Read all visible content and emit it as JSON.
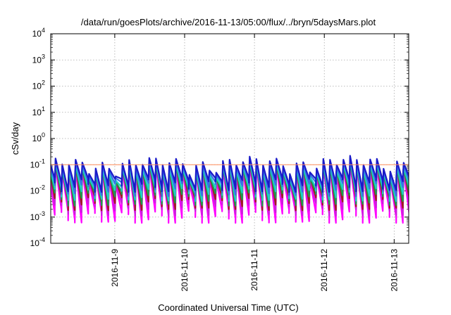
{
  "chart_data": {
    "type": "line",
    "title": "/data/run/goesPlots/archive/2016-11-13/05:00/flux/../bryn/5daysMars.plot",
    "xlabel": "Coordinated Universal Time (UTC)",
    "ylabel": "cSv/day",
    "yscale": "log",
    "grid": true,
    "ylim": [
      0.0001,
      10000
    ],
    "xlim": [
      "2016-11-08T02:00",
      "2016-11-13T05:00"
    ],
    "y_ticks": [
      {
        "base": "10",
        "exp": "4"
      },
      {
        "base": "10",
        "exp": "3"
      },
      {
        "base": "10",
        "exp": "2"
      },
      {
        "base": "10",
        "exp": "1"
      },
      {
        "base": "10",
        "exp": "0"
      },
      {
        "base": "10",
        "exp": "-1"
      },
      {
        "base": "10",
        "exp": "-2"
      },
      {
        "base": "10",
        "exp": "-3"
      },
      {
        "base": "10",
        "exp": "-4"
      }
    ],
    "x_ticks": [
      "2016-11-9",
      "2016-11-10",
      "2016-11-11",
      "2016-11-12",
      "2016-11-13"
    ],
    "x_tick_dates": [
      "2016-11-09T00:00",
      "2016-11-10T00:00",
      "2016-11-11T00:00",
      "2016-11-12T00:00",
      "2016-11-13T00:00"
    ],
    "reference_line": {
      "value": 0.1,
      "color": "#ff8c5a"
    },
    "sawtooth_period_hours": 2.3,
    "series": [
      {
        "color": "#ff00ff",
        "peak": 0.065,
        "trough": 0.0012
      },
      {
        "color": "#cc1fdd",
        "peak": 0.07,
        "trough": 0.0025
      },
      {
        "color": "#a01c1c",
        "peak": 0.085,
        "trough": 0.004
      },
      {
        "color": "#1a9e50",
        "peak": 0.08,
        "trough": 0.006
      },
      {
        "color": "#1fd0c8",
        "peak": 0.09,
        "trough": 0.009
      },
      {
        "color": "#3a6ee8",
        "peak": 0.11,
        "trough": 0.014
      },
      {
        "color": "#1a1ac8",
        "peak": 0.13,
        "trough": 0.02
      }
    ]
  }
}
